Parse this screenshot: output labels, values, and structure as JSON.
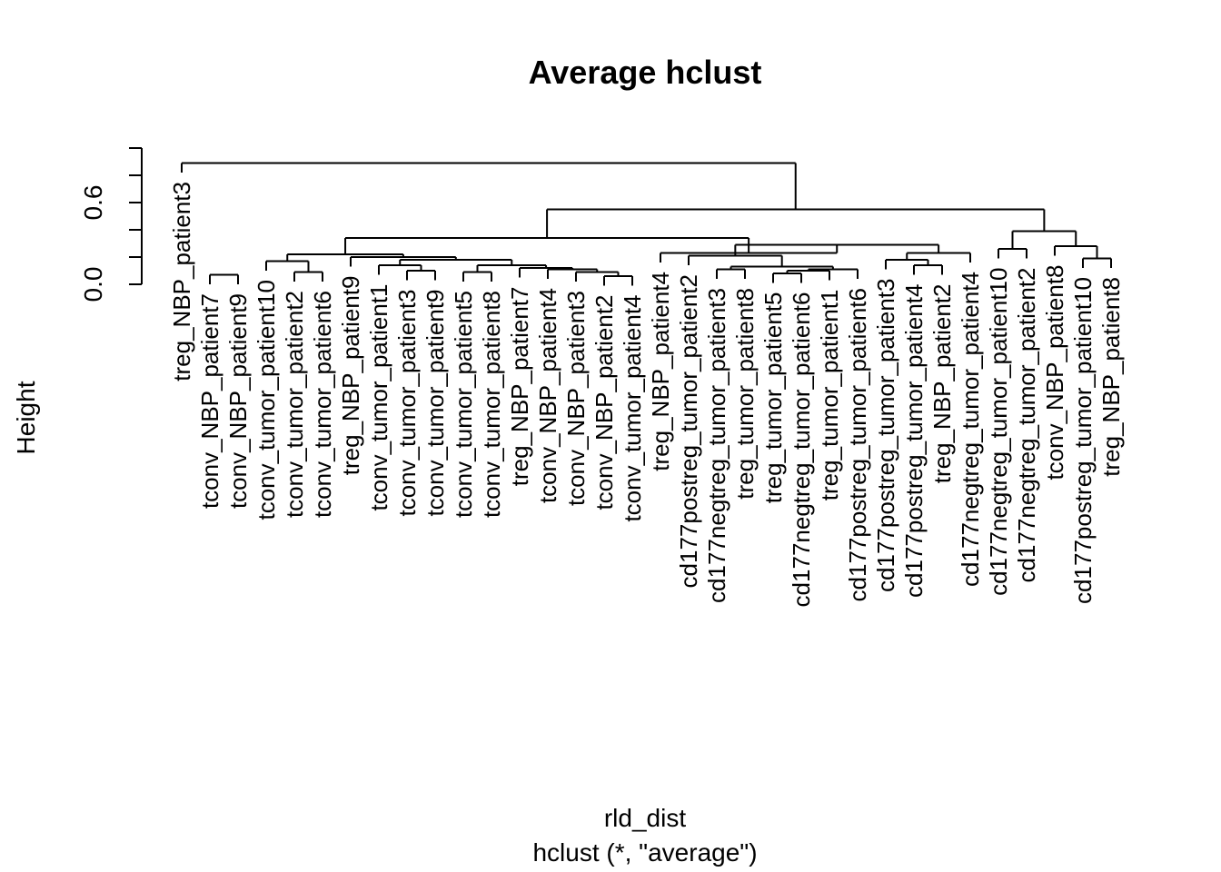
{
  "chart_data": {
    "type": "dendrogram",
    "title": "Average hclust",
    "ylabel": "Height",
    "xlabel": "rld_dist",
    "sublabel": "hclust (*, \"average\")",
    "ylim": [
      0,
      1.0
    ],
    "yticks": [
      0.0,
      0.2,
      0.4,
      0.6,
      0.8,
      1.0
    ],
    "ytick_labels": [
      "0.0",
      "0.6"
    ],
    "leaf_hang_height": 0.07,
    "labels": [
      "treg_NBP_patient3",
      "tconv_NBP_patient7",
      "tconv_NBP_patient9",
      "tconv_tumor_patient10",
      "tconv_tumor_patient2",
      "tconv_tumor_patient6",
      "treg_NBP_patient9",
      "tconv_tumor_patient1",
      "tconv_tumor_patient3",
      "tconv_tumor_patient9",
      "tconv_tumor_patient5",
      "tconv_tumor_patient8",
      "treg_NBP_patient7",
      "tconv_NBP_patient4",
      "tconv_NBP_patient3",
      "tconv_NBP_patient2",
      "tconv_tumor_patient4",
      "treg_NBP_patient4",
      "cd177postreg_tumor_patient2",
      "cd177negtreg_tumor_patient3",
      "treg_tumor_patient8",
      "treg_tumor_patient5",
      "cd177negtreg_tumor_patient6",
      "treg_tumor_patient1",
      "cd177postreg_tumor_patient6",
      "cd177postreg_tumor_patient3",
      "cd177postreg_tumor_patient4",
      "treg_NBP_patient2",
      "cd177negtreg_tumor_patient4",
      "cd177negtreg_tumor_patient10",
      "cd177negtreg_tumor_patient2",
      "tconv_NBP_patient8",
      "cd177postreg_tumor_patient10",
      "treg_NBP_patient8"
    ],
    "merges": [
      {
        "id": "a1",
        "left": 1,
        "right": 2,
        "height": 0.07
      },
      {
        "id": "a2",
        "left": 4,
        "right": 5,
        "height": 0.09
      },
      {
        "id": "a3",
        "left": 3,
        "right": "a2",
        "height": 0.17
      },
      {
        "id": "b1",
        "left": 8,
        "right": 9,
        "height": 0.1
      },
      {
        "id": "b2",
        "left": 7,
        "right": "b1",
        "height": 0.14
      },
      {
        "id": "c1",
        "left": 10,
        "right": 11,
        "height": 0.09
      },
      {
        "id": "d1",
        "left": 15,
        "right": 16,
        "height": 0.06
      },
      {
        "id": "d2",
        "left": 14,
        "right": "d1",
        "height": 0.09
      },
      {
        "id": "d3",
        "left": 13,
        "right": "d2",
        "height": 0.11
      },
      {
        "id": "d4",
        "left": 12,
        "right": "d3",
        "height": 0.12
      },
      {
        "id": "c2",
        "left": "c1",
        "right": "d4",
        "height": 0.14
      },
      {
        "id": "b3",
        "left": "b2",
        "right": "c2",
        "height": 0.18
      },
      {
        "id": "b4",
        "left": 6,
        "right": "b3",
        "height": 0.2
      },
      {
        "id": "e1",
        "left": "a3",
        "right": "b4",
        "height": 0.22
      },
      {
        "id": "f1",
        "left": 19,
        "right": 20,
        "height": 0.11
      },
      {
        "id": "g1",
        "left": 21,
        "right": 22,
        "height": 0.08
      },
      {
        "id": "g2",
        "left": "g1",
        "right": 23,
        "height": 0.1
      },
      {
        "id": "g3",
        "left": "g2",
        "right": 24,
        "height": 0.11
      },
      {
        "id": "f2",
        "left": "f1",
        "right": "g3",
        "height": 0.13
      },
      {
        "id": "h1",
        "left": 18,
        "right": "f2",
        "height": 0.21
      },
      {
        "id": "i1",
        "left": 26,
        "right": 27,
        "height": 0.14
      },
      {
        "id": "i2",
        "left": 25,
        "right": "i1",
        "height": 0.18
      },
      {
        "id": "i3",
        "left": "i2",
        "right": 28,
        "height": 0.23
      },
      {
        "id": "j1",
        "left": "h1",
        "right": "i3",
        "height": 0.29
      },
      {
        "id": "j2",
        "left": 17,
        "right": "j1",
        "height": 0.23
      },
      {
        "id": "k1",
        "left": "e1",
        "right": "j2",
        "height": 0.34
      },
      {
        "id": "l1",
        "left": 29,
        "right": 30,
        "height": 0.26
      },
      {
        "id": "m1",
        "left": 33,
        "right": 32,
        "height": 0.19
      },
      {
        "id": "m2",
        "left": 31,
        "right": "m1",
        "height": 0.28
      },
      {
        "id": "l2",
        "left": "l1",
        "right": "m2",
        "height": 0.39
      },
      {
        "id": "n1",
        "left": "k1",
        "right": "l2",
        "height": 0.55
      },
      {
        "id": "root",
        "left": 0,
        "right": "n1",
        "height": 0.89
      }
    ]
  }
}
